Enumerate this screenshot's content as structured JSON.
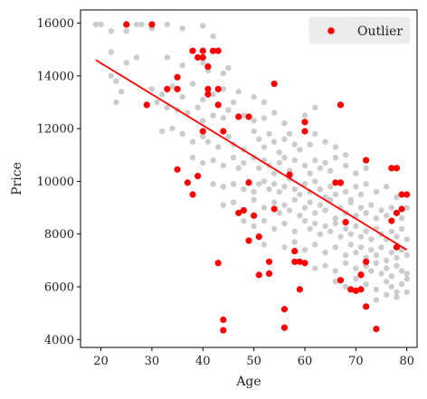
{
  "chart_data": {
    "type": "scatter",
    "title": "",
    "xlabel": "Age",
    "ylabel": "Price",
    "xlim": [
      16,
      82
    ],
    "ylim": [
      3700,
      16500
    ],
    "xticks": [
      20,
      30,
      40,
      50,
      60,
      70,
      80
    ],
    "yticks": [
      4000,
      6000,
      8000,
      10000,
      12000,
      14000,
      16000
    ],
    "grid": false,
    "legend": {
      "entries": [
        "Outlier"
      ],
      "placement": "top-right"
    },
    "colors": {
      "inlier": "#cccccc",
      "outlier": "#ff0000",
      "fit_line": "#ff0000"
    },
    "fit_line": {
      "x": [
        19,
        80
      ],
      "y": [
        14600,
        7400
      ]
    },
    "series": [
      {
        "name": "",
        "role": "inliers",
        "points": [
          [
            19,
            15950
          ],
          [
            20,
            15950
          ],
          [
            22,
            15700
          ],
          [
            25,
            15700
          ],
          [
            27,
            15950
          ],
          [
            28,
            15950
          ],
          [
            30,
            15800
          ],
          [
            33,
            15950
          ],
          [
            36,
            15800
          ],
          [
            40,
            15900
          ],
          [
            42,
            15500
          ],
          [
            22,
            14900
          ],
          [
            25,
            14500
          ],
          [
            27,
            14700
          ],
          [
            33,
            14700
          ],
          [
            36,
            14400
          ],
          [
            40,
            14500
          ],
          [
            41,
            14200
          ],
          [
            44,
            14100
          ],
          [
            45,
            14300
          ],
          [
            22,
            14000
          ],
          [
            23,
            13800
          ],
          [
            24,
            13400
          ],
          [
            30,
            13500
          ],
          [
            32,
            13300
          ],
          [
            34,
            13600
          ],
          [
            36,
            13200
          ],
          [
            38,
            13700
          ],
          [
            40,
            13100
          ],
          [
            42,
            13300
          ],
          [
            44,
            13500
          ],
          [
            46,
            13000
          ],
          [
            47,
            13400
          ],
          [
            50,
            13200
          ],
          [
            52,
            13000
          ],
          [
            23,
            13000
          ],
          [
            31,
            13000
          ],
          [
            33,
            12800
          ],
          [
            35,
            12700
          ],
          [
            37,
            12600
          ],
          [
            39,
            12800
          ],
          [
            40,
            12300
          ],
          [
            42,
            12500
          ],
          [
            44,
            12400
          ],
          [
            45,
            12700
          ],
          [
            48,
            12500
          ],
          [
            50,
            12300
          ],
          [
            52,
            12400
          ],
          [
            54,
            12600
          ],
          [
            56,
            12200
          ],
          [
            60,
            12500
          ],
          [
            62,
            12800
          ],
          [
            32,
            11900
          ],
          [
            34,
            12000
          ],
          [
            36,
            11800
          ],
          [
            38,
            11500
          ],
          [
            40,
            11700
          ],
          [
            41,
            11500
          ],
          [
            43,
            11300
          ],
          [
            45,
            11700
          ],
          [
            46,
            11400
          ],
          [
            48,
            11200
          ],
          [
            50,
            11900
          ],
          [
            51,
            11600
          ],
          [
            52,
            11300
          ],
          [
            53,
            11800
          ],
          [
            54,
            11500
          ],
          [
            55,
            11100
          ],
          [
            56,
            11600
          ],
          [
            57,
            11800
          ],
          [
            58,
            11400
          ],
          [
            59,
            11200
          ],
          [
            61,
            11400
          ],
          [
            62,
            11800
          ],
          [
            64,
            11500
          ],
          [
            66,
            11300
          ],
          [
            68,
            11000
          ],
          [
            38,
            10900
          ],
          [
            40,
            10700
          ],
          [
            42,
            10800
          ],
          [
            44,
            10600
          ],
          [
            46,
            10900
          ],
          [
            47,
            10500
          ],
          [
            48,
            10700
          ],
          [
            50,
            10900
          ],
          [
            51,
            10500
          ],
          [
            52,
            10800
          ],
          [
            53,
            10600
          ],
          [
            54,
            10300
          ],
          [
            55,
            10700
          ],
          [
            56,
            10900
          ],
          [
            57,
            10400
          ],
          [
            58,
            10800
          ],
          [
            60,
            10600
          ],
          [
            61,
            10300
          ],
          [
            62,
            10800
          ],
          [
            63,
            10500
          ],
          [
            64,
            10700
          ],
          [
            65,
            10400
          ],
          [
            66,
            10900
          ],
          [
            68,
            10600
          ],
          [
            70,
            10300
          ],
          [
            72,
            10500
          ],
          [
            42,
            9900
          ],
          [
            44,
            9800
          ],
          [
            46,
            9900
          ],
          [
            48,
            9700
          ],
          [
            49,
            10000
          ],
          [
            50,
            9600
          ],
          [
            51,
            9900
          ],
          [
            52,
            10000
          ],
          [
            53,
            9700
          ],
          [
            54,
            9900
          ],
          [
            55,
            9600
          ],
          [
            56,
            9800
          ],
          [
            57,
            10100
          ],
          [
            58,
            9700
          ],
          [
            59,
            9500
          ],
          [
            60,
            9900
          ],
          [
            61,
            9600
          ],
          [
            62,
            10000
          ],
          [
            63,
            9700
          ],
          [
            64,
            9400
          ],
          [
            65,
            9800
          ],
          [
            66,
            9500
          ],
          [
            67,
            9900
          ],
          [
            68,
            9600
          ],
          [
            69,
            9300
          ],
          [
            70,
            9800
          ],
          [
            71,
            9500
          ],
          [
            72,
            9900
          ],
          [
            74,
            9600
          ],
          [
            76,
            9800
          ],
          [
            78,
            9400
          ],
          [
            44,
            9100
          ],
          [
            46,
            9200
          ],
          [
            48,
            8900
          ],
          [
            50,
            9300
          ],
          [
            52,
            9000
          ],
          [
            54,
            9200
          ],
          [
            55,
            8800
          ],
          [
            56,
            9100
          ],
          [
            57,
            8900
          ],
          [
            58,
            9300
          ],
          [
            59,
            8700
          ],
          [
            60,
            9000
          ],
          [
            61,
            9200
          ],
          [
            62,
            8800
          ],
          [
            63,
            9100
          ],
          [
            64,
            8900
          ],
          [
            65,
            9300
          ],
          [
            66,
            8600
          ],
          [
            67,
            9000
          ],
          [
            68,
            8800
          ],
          [
            69,
            9200
          ],
          [
            70,
            8700
          ],
          [
            71,
            9000
          ],
          [
            72,
            8800
          ],
          [
            73,
            9100
          ],
          [
            74,
            8600
          ],
          [
            75,
            8900
          ],
          [
            76,
            8700
          ],
          [
            77,
            9000
          ],
          [
            78,
            8800
          ],
          [
            79,
            8600
          ],
          [
            80,
            9000
          ],
          [
            48,
            8500
          ],
          [
            50,
            8300
          ],
          [
            52,
            8500
          ],
          [
            54,
            8200
          ],
          [
            56,
            8400
          ],
          [
            58,
            8100
          ],
          [
            60,
            8500
          ],
          [
            61,
            8200
          ],
          [
            62,
            8400
          ],
          [
            63,
            8000
          ],
          [
            64,
            8300
          ],
          [
            65,
            8100
          ],
          [
            66,
            8400
          ],
          [
            67,
            7900
          ],
          [
            68,
            8200
          ],
          [
            69,
            8000
          ],
          [
            70,
            8300
          ],
          [
            71,
            7900
          ],
          [
            72,
            8100
          ],
          [
            73,
            7800
          ],
          [
            74,
            8200
          ],
          [
            75,
            8000
          ],
          [
            76,
            7800
          ],
          [
            77,
            8100
          ],
          [
            78,
            7900
          ],
          [
            79,
            8200
          ],
          [
            80,
            7800
          ],
          [
            52,
            7600
          ],
          [
            56,
            7500
          ],
          [
            58,
            7700
          ],
          [
            60,
            7400
          ],
          [
            62,
            7600
          ],
          [
            64,
            7300
          ],
          [
            66,
            7500
          ],
          [
            68,
            7200
          ],
          [
            69,
            7600
          ],
          [
            70,
            7300
          ],
          [
            71,
            7500
          ],
          [
            72,
            7100
          ],
          [
            73,
            7400
          ],
          [
            74,
            7200
          ],
          [
            75,
            7500
          ],
          [
            76,
            7000
          ],
          [
            77,
            7300
          ],
          [
            78,
            7100
          ],
          [
            79,
            7400
          ],
          [
            80,
            7200
          ],
          [
            60,
            6900
          ],
          [
            62,
            6700
          ],
          [
            64,
            6800
          ],
          [
            66,
            6600
          ],
          [
            68,
            6900
          ],
          [
            70,
            6700
          ],
          [
            71,
            6500
          ],
          [
            72,
            6800
          ],
          [
            73,
            6600
          ],
          [
            74,
            6900
          ],
          [
            75,
            6500
          ],
          [
            76,
            6700
          ],
          [
            77,
            6400
          ],
          [
            78,
            6800
          ],
          [
            79,
            6600
          ],
          [
            80,
            6500
          ],
          [
            66,
            6200
          ],
          [
            68,
            6000
          ],
          [
            70,
            6300
          ],
          [
            72,
            6100
          ],
          [
            74,
            5900
          ],
          [
            76,
            6200
          ],
          [
            77,
            6000
          ],
          [
            78,
            5800
          ],
          [
            79,
            6100
          ],
          [
            80,
            6300
          ],
          [
            74,
            5500
          ],
          [
            76,
            5700
          ],
          [
            78,
            5600
          ],
          [
            80,
            5800
          ]
        ]
      },
      {
        "name": "Outlier",
        "role": "outliers",
        "points": [
          [
            25,
            15950
          ],
          [
            30,
            15950
          ],
          [
            29,
            12900
          ],
          [
            33,
            13500
          ],
          [
            35,
            13500
          ],
          [
            35,
            13950
          ],
          [
            38,
            14950
          ],
          [
            39,
            14700
          ],
          [
            40,
            14700
          ],
          [
            40,
            14950
          ],
          [
            41,
            14350
          ],
          [
            42,
            14950
          ],
          [
            43,
            14950
          ],
          [
            41,
            13300
          ],
          [
            41,
            13500
          ],
          [
            43,
            13500
          ],
          [
            43,
            12900
          ],
          [
            40,
            11900
          ],
          [
            44,
            11900
          ],
          [
            47,
            12450
          ],
          [
            49,
            12450
          ],
          [
            54,
            13700
          ],
          [
            60,
            11900
          ],
          [
            60,
            12250
          ],
          [
            67,
            12900
          ],
          [
            35,
            10450
          ],
          [
            39,
            10200
          ],
          [
            37,
            9950
          ],
          [
            38,
            9500
          ],
          [
            49,
            9950
          ],
          [
            54,
            8950
          ],
          [
            47,
            8800
          ],
          [
            48,
            8900
          ],
          [
            50,
            8700
          ],
          [
            49,
            7750
          ],
          [
            51,
            7900
          ],
          [
            53,
            6950
          ],
          [
            53,
            6500
          ],
          [
            51,
            6450
          ],
          [
            43,
            6900
          ],
          [
            44,
            4750
          ],
          [
            44,
            4350
          ],
          [
            56,
            5150
          ],
          [
            56,
            4450
          ],
          [
            58,
            7350
          ],
          [
            58,
            6950
          ],
          [
            59,
            6950
          ],
          [
            60,
            6900
          ],
          [
            59,
            5900
          ],
          [
            57,
            10250
          ],
          [
            66,
            9950
          ],
          [
            67,
            9950
          ],
          [
            68,
            8450
          ],
          [
            67,
            6250
          ],
          [
            69,
            5900
          ],
          [
            70,
            5850
          ],
          [
            71,
            5900
          ],
          [
            71,
            6450
          ],
          [
            72,
            6950
          ],
          [
            72,
            5250
          ],
          [
            72,
            10800
          ],
          [
            74,
            4400
          ],
          [
            77,
            10500
          ],
          [
            78,
            10500
          ],
          [
            77,
            8500
          ],
          [
            78,
            8800
          ],
          [
            79,
            8950
          ],
          [
            79,
            9500
          ],
          [
            80,
            9500
          ],
          [
            78,
            7500
          ]
        ]
      }
    ]
  }
}
